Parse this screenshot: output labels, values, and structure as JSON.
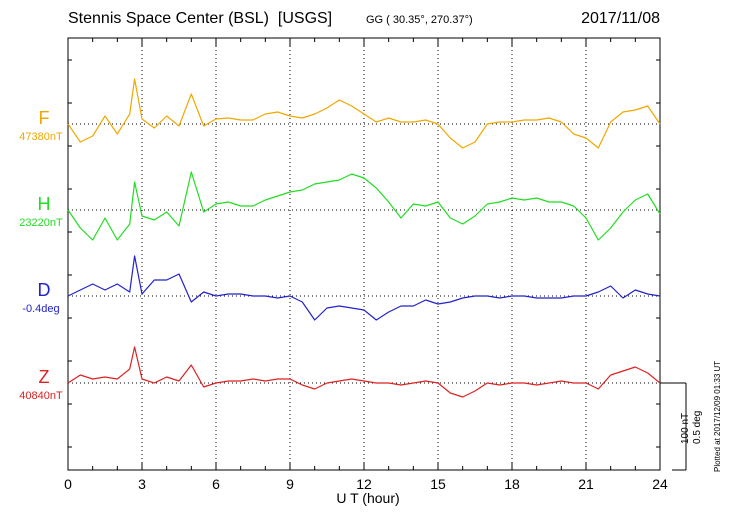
{
  "header": {
    "station": "Stennis Space Center (BSL)",
    "agency": "[USGS]",
    "coords": "GG ( 30.35°, 270.37°)",
    "date": "2017/11/08"
  },
  "scale": {
    "nt": "100 nT",
    "deg": "0.5 deg"
  },
  "plotted": "Plotted at 2017/12/09 01:33 UT",
  "chart_data": {
    "type": "line",
    "xlabel": "U T (hour)",
    "xlim": [
      0,
      24
    ],
    "xticks": [
      "0",
      "3",
      "6",
      "9",
      "12",
      "15",
      "18",
      "21",
      "24"
    ],
    "grid": true,
    "series": [
      {
        "name": "F",
        "baseline": "47380nT",
        "color": "#f0a800",
        "x": [
          0,
          0.5,
          1,
          1.5,
          2,
          2.5,
          2.7,
          3,
          3.5,
          4,
          4.5,
          5,
          5.5,
          6,
          6.5,
          7,
          7.5,
          8,
          8.5,
          9,
          9.5,
          10,
          10.5,
          11,
          11.5,
          12,
          12.5,
          13,
          13.5,
          14,
          14.5,
          15,
          15.5,
          16,
          16.5,
          17,
          17.5,
          18,
          18.5,
          19,
          19.5,
          20,
          20.5,
          21,
          21.5,
          22,
          22.5,
          23,
          23.5,
          24
        ],
        "y": [
          0,
          -18,
          -12,
          8,
          -10,
          10,
          45,
          5,
          -4,
          8,
          -2,
          30,
          -2,
          5,
          6,
          4,
          4,
          10,
          12,
          8,
          6,
          10,
          16,
          24,
          18,
          10,
          2,
          6,
          2,
          2,
          4,
          0,
          -14,
          -24,
          -18,
          0,
          2,
          2,
          4,
          4,
          6,
          2,
          -10,
          -14,
          -24,
          2,
          12,
          14,
          18,
          0
        ]
      },
      {
        "name": "H",
        "baseline": "23220nT",
        "color": "#22dd22",
        "x": [
          0,
          0.5,
          1,
          1.5,
          2,
          2.5,
          2.7,
          3,
          3.5,
          4,
          4.5,
          5,
          5.5,
          6,
          6.5,
          7,
          7.5,
          8,
          8.5,
          9,
          9.5,
          10,
          10.5,
          11,
          11.5,
          12,
          12.5,
          13,
          13.5,
          14,
          14.5,
          15,
          15.5,
          16,
          16.5,
          17,
          17.5,
          18,
          18.5,
          19,
          19.5,
          20,
          20.5,
          21,
          21.5,
          22,
          22.5,
          23,
          23.5,
          24
        ],
        "y": [
          0,
          -18,
          -30,
          -8,
          -30,
          -14,
          28,
          -6,
          -10,
          -2,
          -16,
          38,
          -2,
          6,
          8,
          4,
          4,
          10,
          14,
          18,
          20,
          26,
          28,
          30,
          36,
          32,
          22,
          8,
          -8,
          6,
          4,
          8,
          -8,
          -14,
          -6,
          6,
          8,
          12,
          10,
          12,
          8,
          8,
          4,
          -8,
          -30,
          -18,
          -2,
          10,
          16,
          -4
        ]
      },
      {
        "name": "D",
        "baseline": "-0.4deg",
        "color": "#2222cc",
        "x": [
          0,
          0.5,
          1,
          1.5,
          2,
          2.5,
          2.7,
          3,
          3.5,
          4,
          4.5,
          5,
          5.5,
          6,
          6.5,
          7,
          7.5,
          8,
          8.5,
          9,
          9.5,
          10,
          10.5,
          11,
          11.5,
          12,
          12.5,
          13,
          13.5,
          14,
          14.5,
          15,
          15.5,
          16,
          16.5,
          17,
          17.5,
          18,
          18.5,
          19,
          19.5,
          20,
          20.5,
          21,
          21.5,
          22,
          22.5,
          23,
          23.5,
          24
        ],
        "y": [
          0,
          6,
          12,
          6,
          12,
          4,
          40,
          2,
          16,
          16,
          22,
          -6,
          4,
          0,
          2,
          2,
          0,
          0,
          -2,
          0,
          -6,
          -24,
          -12,
          -10,
          -12,
          -14,
          -24,
          -16,
          -10,
          -10,
          -4,
          -8,
          -6,
          -2,
          0,
          0,
          -2,
          0,
          0,
          -2,
          -2,
          -2,
          0,
          0,
          4,
          10,
          -2,
          6,
          2,
          0
        ]
      },
      {
        "name": "Z",
        "baseline": "40840nT",
        "color": "#dd2222",
        "x": [
          0,
          0.5,
          1,
          1.5,
          2,
          2.5,
          2.7,
          3,
          3.5,
          4,
          4.5,
          5,
          5.5,
          6,
          6.5,
          7,
          7.5,
          8,
          8.5,
          9,
          9.5,
          10,
          10.5,
          11,
          11.5,
          12,
          12.5,
          13,
          13.5,
          14,
          14.5,
          15,
          15.5,
          16,
          16.5,
          17,
          17.5,
          18,
          18.5,
          19,
          19.5,
          20,
          20.5,
          21,
          21.5,
          22,
          22.5,
          23,
          23.5,
          24
        ],
        "y": [
          0,
          8,
          4,
          6,
          4,
          14,
          36,
          4,
          0,
          6,
          2,
          18,
          -4,
          0,
          2,
          2,
          4,
          2,
          4,
          4,
          -2,
          -6,
          0,
          2,
          4,
          2,
          0,
          0,
          -2,
          0,
          2,
          0,
          -10,
          -14,
          -8,
          0,
          -2,
          0,
          0,
          -2,
          0,
          2,
          0,
          0,
          -6,
          8,
          12,
          16,
          10,
          0
        ]
      }
    ]
  }
}
